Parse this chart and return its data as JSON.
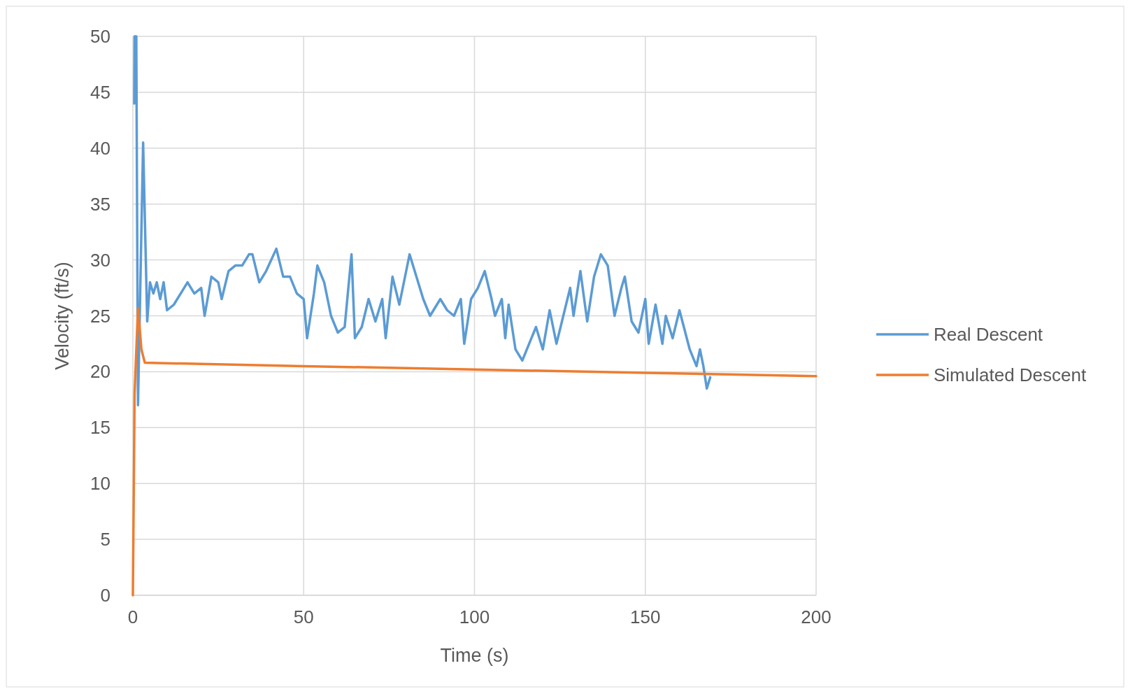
{
  "chart_data": {
    "type": "line",
    "xlabel": "Time (s)",
    "ylabel": "Velocity (ft/s)",
    "xlim": [
      0,
      200
    ],
    "xticks": [
      0,
      50,
      100,
      150,
      200
    ],
    "ylim": [
      0,
      50
    ],
    "yticks": [
      0,
      5,
      10,
      15,
      20,
      25,
      30,
      35,
      40,
      45,
      50
    ],
    "grid": true,
    "legend": "right",
    "line_style": "solid",
    "series": [
      {
        "name": "Real Descent",
        "color": "#5b9bd5",
        "x": [
          0.4,
          0.5,
          1.0,
          1.5,
          3.0,
          4.2,
          5,
          6,
          7,
          8,
          9,
          10,
          12,
          14,
          16,
          18,
          20,
          21,
          23,
          25,
          26,
          28,
          30,
          32,
          34,
          35,
          37,
          39,
          42,
          44,
          46,
          48,
          50,
          51,
          53,
          54,
          56,
          58,
          60,
          62,
          64,
          65,
          67,
          69,
          71,
          73,
          74,
          76,
          78,
          81,
          83,
          85,
          87,
          90,
          92,
          94,
          96,
          97,
          98,
          99,
          101,
          103,
          105,
          106,
          108,
          109,
          110,
          112,
          114,
          116,
          118,
          120,
          122,
          124,
          126,
          128,
          129,
          131,
          133,
          135,
          137,
          139,
          141,
          143,
          144,
          146,
          148,
          150,
          151,
          153,
          155,
          156,
          158,
          160,
          163,
          165,
          166,
          167,
          168,
          169
        ],
        "values": [
          44,
          50,
          50,
          17,
          40.5,
          24.5,
          28,
          27,
          28,
          26.5,
          28,
          25.5,
          26,
          27,
          28,
          27,
          27.5,
          25,
          28.5,
          28,
          26.5,
          29,
          29.5,
          29.5,
          30.5,
          30.5,
          28,
          29,
          31,
          28.5,
          28.5,
          27,
          26.5,
          23,
          27,
          29.5,
          28,
          25,
          23.5,
          24,
          30.5,
          23,
          24,
          26.5,
          24.5,
          26.5,
          23,
          28.5,
          26,
          30.5,
          28.5,
          26.5,
          25,
          26.5,
          25.5,
          25,
          26.5,
          22.5,
          24.5,
          26.5,
          27.5,
          29,
          26.5,
          25,
          26.5,
          23,
          26,
          22,
          21,
          22.5,
          24,
          22,
          25.5,
          22.5,
          25,
          27.5,
          25,
          29,
          24.5,
          28.5,
          30.5,
          29.5,
          25,
          27.5,
          28.5,
          24.5,
          23.5,
          26.5,
          22.5,
          26,
          22.5,
          25,
          23,
          25.5,
          22,
          20.5,
          22,
          20.5,
          18.5,
          19.5
        ]
      },
      {
        "name": "Simulated Descent",
        "color": "#ed7d31",
        "x": [
          0,
          0.5,
          1.5,
          2.5,
          3.5,
          50,
          100,
          150,
          200
        ],
        "values": [
          0,
          18,
          25.7,
          22,
          20.8,
          20.5,
          20.2,
          19.9,
          19.6
        ]
      }
    ]
  }
}
